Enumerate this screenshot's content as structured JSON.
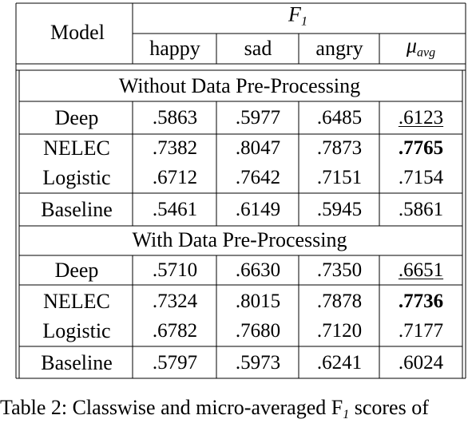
{
  "table": {
    "header": {
      "model_label": "Model",
      "metric_label": "F",
      "metric_sub": "1",
      "columns": [
        "happy",
        "sad",
        "angry"
      ],
      "avg_symbol": "μ",
      "avg_sub": "avg"
    },
    "sections": [
      {
        "title": "Without Data Pre-Processing",
        "rows": [
          {
            "model": "Deep",
            "values": [
              ".5863",
              ".5977",
              ".6485",
              ".6123"
            ],
            "avg_style": "underline"
          },
          {
            "model": "NELEC",
            "values": [
              ".7382",
              ".8047",
              ".7873",
              ".7765"
            ],
            "avg_style": "bold"
          },
          {
            "model": "Logistic",
            "values": [
              ".6712",
              ".7642",
              ".7151",
              ".7154"
            ],
            "avg_style": "normal"
          },
          {
            "model": "Baseline",
            "values": [
              ".5461",
              ".6149",
              ".5945",
              ".5861"
            ],
            "avg_style": "normal"
          }
        ]
      },
      {
        "title": "With Data Pre-Processing",
        "rows": [
          {
            "model": "Deep",
            "values": [
              ".5710",
              ".6630",
              ".7350",
              ".6651"
            ],
            "avg_style": "underline"
          },
          {
            "model": "NELEC",
            "values": [
              ".7324",
              ".8015",
              ".7878",
              ".7736"
            ],
            "avg_style": "bold"
          },
          {
            "model": "Logistic",
            "values": [
              ".6782",
              ".7680",
              ".7120",
              ".7177"
            ],
            "avg_style": "normal"
          },
          {
            "model": "Baseline",
            "values": [
              ".5797",
              ".5973",
              ".6241",
              ".6024"
            ],
            "avg_style": "normal"
          }
        ]
      }
    ]
  },
  "caption": "Table 2: Classwise and micro-averaged F",
  "caption_sub": "1",
  "caption_tail": " scores of"
}
